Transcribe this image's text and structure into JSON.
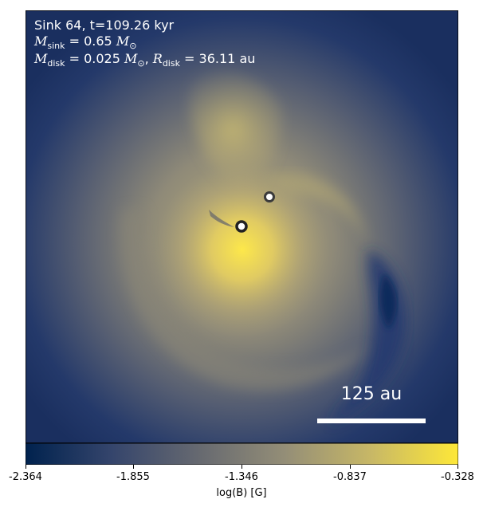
{
  "info": {
    "line1": "Sink 64, t=109.26 kyr",
    "sink_mass_label": "sink",
    "sink_mass_value": " = 0.65 ",
    "disk_mass_label": "disk",
    "disk_mass_value": " = 0.025 ",
    "disk_radius_label": "disk",
    "disk_radius_value": " = 36.11 au",
    "msun_symbol": "M",
    "sun_sub": "⊙"
  },
  "scale_bar": {
    "label": "125 au"
  },
  "colorbar": {
    "title": "log(B) [G]",
    "ticks": [
      "-2.364",
      "-1.855",
      "-1.346",
      "-0.837",
      "-0.328"
    ],
    "colors": [
      "#00224e",
      "#35456c",
      "#666970",
      "#948e77",
      "#c8b866",
      "#fee838"
    ]
  }
}
